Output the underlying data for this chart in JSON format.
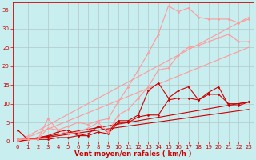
{
  "bg_color": "#c8eef0",
  "grid_color": "#b0c8c8",
  "xlabel": "Vent moyen/en rafales ( km/h )",
  "xlabel_color": "#cc0000",
  "xlabel_fontsize": 6,
  "tick_color": "#cc0000",
  "tick_fontsize": 5,
  "xlim": [
    -0.5,
    23.5
  ],
  "ylim": [
    0,
    37
  ],
  "yticks": [
    0,
    5,
    10,
    15,
    20,
    25,
    30,
    35
  ],
  "xticks": [
    0,
    1,
    2,
    3,
    4,
    5,
    6,
    7,
    8,
    9,
    10,
    11,
    12,
    13,
    14,
    15,
    16,
    17,
    18,
    19,
    20,
    21,
    22,
    23
  ],
  "series": [
    {
      "x": [
        0,
        23
      ],
      "y": [
        0.0,
        8.5
      ],
      "color": "#cc0000",
      "lw": 0.8,
      "marker": null,
      "ms": 0,
      "linestyle": "-"
    },
    {
      "x": [
        0,
        23
      ],
      "y": [
        0.0,
        10.5
      ],
      "color": "#cc0000",
      "lw": 0.8,
      "marker": null,
      "ms": 0,
      "linestyle": "-"
    },
    {
      "x": [
        0,
        23
      ],
      "y": [
        0.0,
        25.0
      ],
      "color": "#ff9999",
      "lw": 0.8,
      "marker": null,
      "ms": 0,
      "linestyle": "-"
    },
    {
      "x": [
        0,
        23
      ],
      "y": [
        0.0,
        33.0
      ],
      "color": "#ff9999",
      "lw": 0.8,
      "marker": null,
      "ms": 0,
      "linestyle": "-"
    },
    {
      "x": [
        0,
        1,
        2,
        3,
        4,
        5,
        6,
        7,
        8,
        9,
        10,
        11,
        12,
        13,
        14,
        15,
        16,
        17,
        18,
        19,
        20,
        21,
        22,
        23
      ],
      "y": [
        0.5,
        0.5,
        0.5,
        0.5,
        1.0,
        1.0,
        1.5,
        1.5,
        2.5,
        2.0,
        5.0,
        5.0,
        6.5,
        7.0,
        7.0,
        11.0,
        11.5,
        11.5,
        11.0,
        12.5,
        12.5,
        10.0,
        10.0,
        10.5
      ],
      "color": "#cc0000",
      "lw": 0.8,
      "marker": "D",
      "ms": 1.5,
      "linestyle": "-"
    },
    {
      "x": [
        0,
        1,
        2,
        3,
        4,
        5,
        6,
        7,
        8,
        9,
        10,
        11,
        12,
        13,
        14,
        15,
        16,
        17,
        18,
        19,
        20,
        21,
        22,
        23
      ],
      "y": [
        3.0,
        0.5,
        1.0,
        1.5,
        2.5,
        3.0,
        1.5,
        2.0,
        4.0,
        2.5,
        5.5,
        5.5,
        7.0,
        13.5,
        15.5,
        11.5,
        13.5,
        14.5,
        11.0,
        13.0,
        14.5,
        9.5,
        9.5,
        10.5
      ],
      "color": "#cc0000",
      "lw": 0.8,
      "marker": "D",
      "ms": 1.5,
      "linestyle": "-"
    },
    {
      "x": [
        0,
        1,
        2,
        3,
        4,
        5,
        6,
        7,
        8,
        9,
        10,
        11,
        12,
        13,
        14,
        15,
        16,
        17,
        18,
        19,
        20,
        21,
        22,
        23
      ],
      "y": [
        0.5,
        0.5,
        0.5,
        3.5,
        3.0,
        2.0,
        2.5,
        3.5,
        5.0,
        2.5,
        7.0,
        8.5,
        11.5,
        14.5,
        19.0,
        19.5,
        23.0,
        25.0,
        25.5,
        26.5,
        27.5,
        28.5,
        26.5,
        26.5
      ],
      "color": "#ff9999",
      "lw": 0.8,
      "marker": "D",
      "ms": 1.5,
      "linestyle": "-"
    },
    {
      "x": [
        0,
        1,
        2,
        3,
        4,
        5,
        6,
        7,
        8,
        9,
        10,
        11,
        12,
        13,
        14,
        15,
        16,
        17,
        18,
        19,
        20,
        21,
        22,
        23
      ],
      "y": [
        0.5,
        0.5,
        0.5,
        6.0,
        3.0,
        4.0,
        5.0,
        4.5,
        5.5,
        6.0,
        10.5,
        14.5,
        19.0,
        23.5,
        28.5,
        36.0,
        34.5,
        35.5,
        33.0,
        32.5,
        32.5,
        32.5,
        31.5,
        32.5
      ],
      "color": "#ff9999",
      "lw": 0.8,
      "marker": "D",
      "ms": 1.5,
      "linestyle": "-"
    }
  ]
}
